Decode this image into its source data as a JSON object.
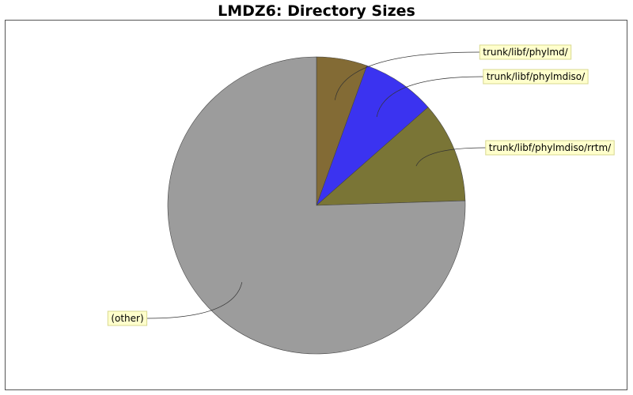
{
  "chart_data": {
    "type": "pie",
    "title": "LMDZ6: Directory Sizes",
    "start_angle_deg": 90,
    "direction": "clockwise",
    "slices": [
      {
        "label": "trunk/libf/phylmd/",
        "value": 5.5,
        "color": "#836B35"
      },
      {
        "label": "trunk/libf/phylmdiso/",
        "value": 8.0,
        "color": "#3B33F0"
      },
      {
        "label": "trunk/libf/phylmdiso/rrtm/",
        "value": 11.0,
        "color": "#7A7536"
      },
      {
        "label": "(other)",
        "value": 75.5,
        "color": "#9C9C9C"
      }
    ],
    "label_box_color": "#FFFFCC",
    "label_box_border": "#D8D890"
  }
}
